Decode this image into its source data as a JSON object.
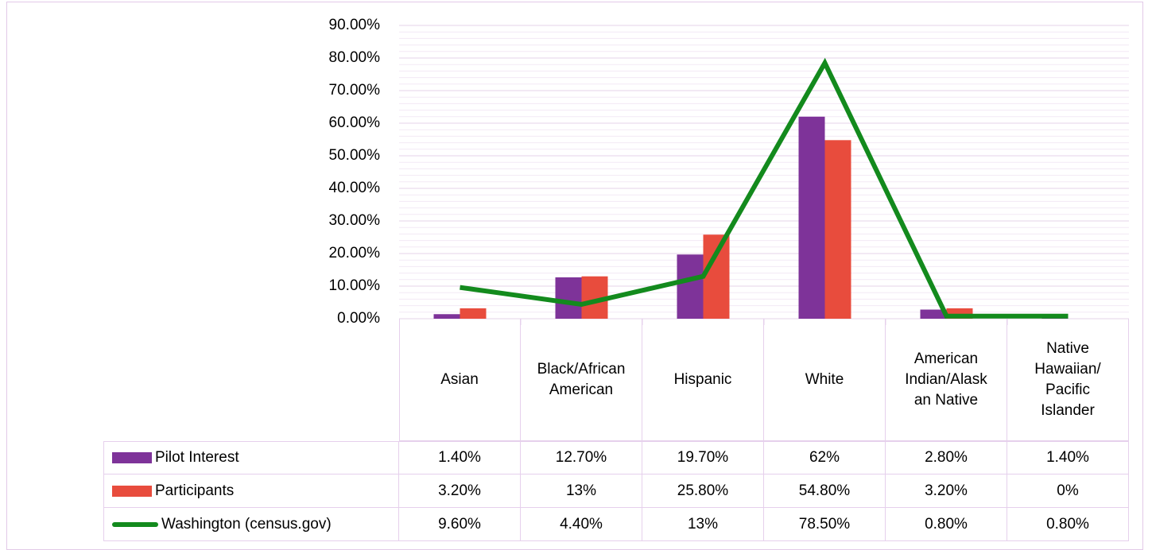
{
  "chart_data": {
    "type": "bar",
    "categories": [
      "Asian",
      "Black/African American",
      "Hispanic",
      "White",
      "American Indian/Alaskan Native",
      "Native Hawaiian/ Pacific Islander"
    ],
    "series": [
      {
        "name": "Pilot Interest",
        "type": "bar",
        "color": "#7e3399",
        "values": [
          1.4,
          12.7,
          19.7,
          62,
          2.8,
          1.4
        ],
        "value_labels": [
          "1.40%",
          "12.70%",
          "19.70%",
          "62%",
          "2.80%",
          "1.40%"
        ]
      },
      {
        "name": "Participants",
        "type": "bar",
        "color": "#e84c3d",
        "values": [
          3.2,
          13,
          25.8,
          54.8,
          3.2,
          0
        ],
        "value_labels": [
          "3.20%",
          "13%",
          "25.80%",
          "54.80%",
          "3.20%",
          "0%"
        ]
      },
      {
        "name": "Washington (census.gov)",
        "type": "line",
        "color": "#138a1d",
        "values": [
          9.6,
          4.4,
          13,
          78.5,
          0.8,
          0.8
        ],
        "value_labels": [
          "9.60%",
          "4.40%",
          "13%",
          "78.50%",
          "0.80%",
          "0.80%"
        ]
      }
    ],
    "ylim": [
      0,
      90
    ],
    "yticks": [
      {
        "value": 0,
        "label": "0.00%"
      },
      {
        "value": 10,
        "label": "10.00%"
      },
      {
        "value": 20,
        "label": "20.00%"
      },
      {
        "value": 30,
        "label": "30.00%"
      },
      {
        "value": 40,
        "label": "40.00%"
      },
      {
        "value": 50,
        "label": "50.00%"
      },
      {
        "value": 60,
        "label": "60.00%"
      },
      {
        "value": 70,
        "label": "70.00%"
      },
      {
        "value": 80,
        "label": "80.00%"
      },
      {
        "value": 90,
        "label": "90.00%"
      }
    ],
    "grid": true
  }
}
